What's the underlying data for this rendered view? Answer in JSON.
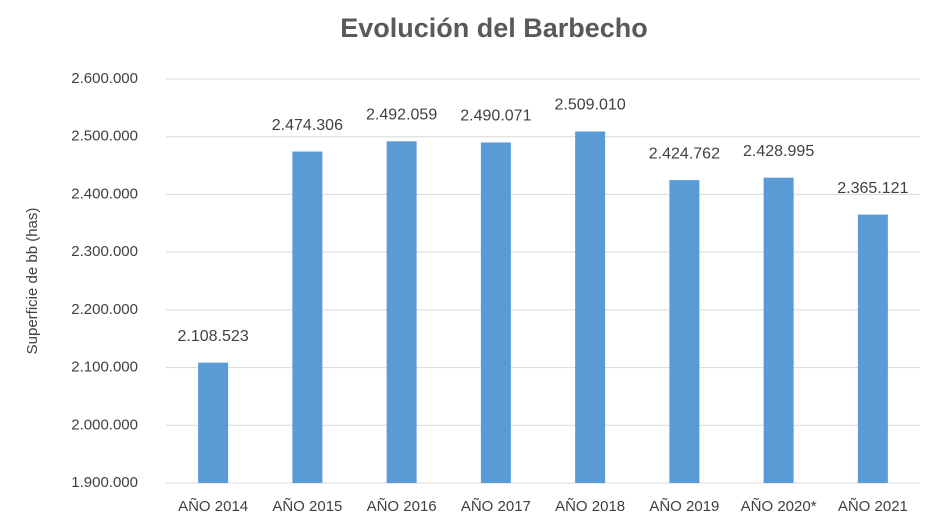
{
  "chart_data": {
    "type": "bar",
    "title": "Evolución del Barbecho",
    "y_axis_label": "Superficie de bb (has)",
    "categories": [
      "AÑO 2014",
      "AÑO 2015",
      "AÑO 2016",
      "AÑO 2017",
      "AÑO 2018",
      "AÑO 2019",
      "AÑO 2020*",
      "AÑO 2021"
    ],
    "values": [
      2108523,
      2474306,
      2492059,
      2490071,
      2509010,
      2424762,
      2428995,
      2365121
    ],
    "value_labels": [
      "2.108.523",
      "2.474.306",
      "2.492.059",
      "2.490.071",
      "2.509.010",
      "2.424.762",
      "2.428.995",
      "2.365.121"
    ],
    "color": "#5b9bd5",
    "ylim": [
      1900000,
      2600000
    ],
    "yticks": [
      {
        "value": 1900000,
        "label": "1.900.000"
      },
      {
        "value": 2000000,
        "label": "2.000.000"
      },
      {
        "value": 2100000,
        "label": "2.100.000"
      },
      {
        "value": 2200000,
        "label": "2.200.000"
      },
      {
        "value": 2300000,
        "label": "2.300.000"
      },
      {
        "value": 2400000,
        "label": "2.400.000"
      },
      {
        "value": 2500000,
        "label": "2.500.000"
      },
      {
        "value": 2600000,
        "label": "2.600.000"
      }
    ],
    "grid": true
  }
}
